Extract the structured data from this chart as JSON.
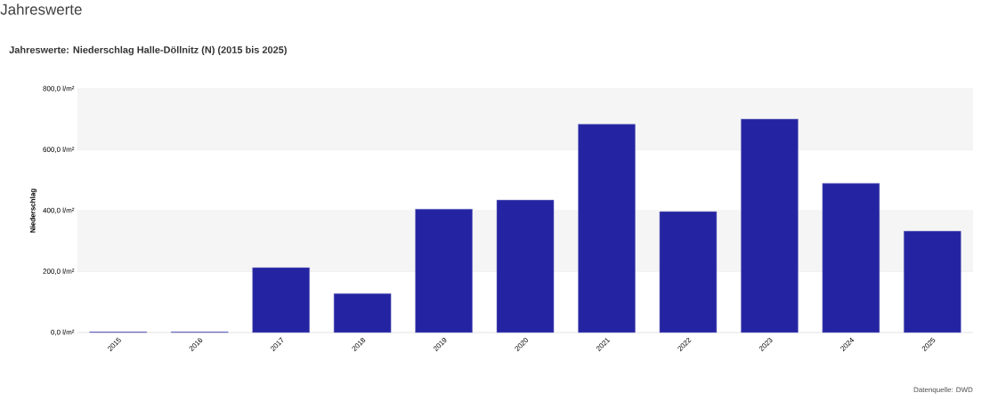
{
  "chart_data": {
    "type": "bar",
    "title": "Jahreswerte",
    "subtitle": "Jahreswerte: Niederschlag Halle-Döllnitz (N) (2015 bis 2025)",
    "ylabel": "Niederschlag",
    "categories": [
      "2015",
      "2016",
      "2017",
      "2018",
      "2019",
      "2020",
      "2021",
      "2022",
      "2023",
      "2024",
      "2025"
    ],
    "values": [
      2,
      2,
      213,
      128,
      405,
      435,
      684,
      397,
      701,
      490,
      333
    ],
    "color": "#2424a2",
    "ylim": [
      0,
      800
    ],
    "yticks": [
      {
        "value": 0,
        "label": "0,0 l/m²"
      },
      {
        "value": 200,
        "label": "200,0 l/m²"
      },
      {
        "value": 400,
        "label": "400,0 l/m²"
      },
      {
        "value": 600,
        "label": "600,0 l/m²"
      },
      {
        "value": 800,
        "label": "800,0 l/m²"
      }
    ],
    "bands": [
      {
        "axis": "y",
        "from": 200,
        "to": 400,
        "color": "#f5f5f5"
      },
      {
        "axis": "y",
        "from": 600,
        "to": 800,
        "color": "#f5f5f5"
      }
    ],
    "grid": "y",
    "annotations": [
      "Datenquelle: DWD"
    ]
  }
}
